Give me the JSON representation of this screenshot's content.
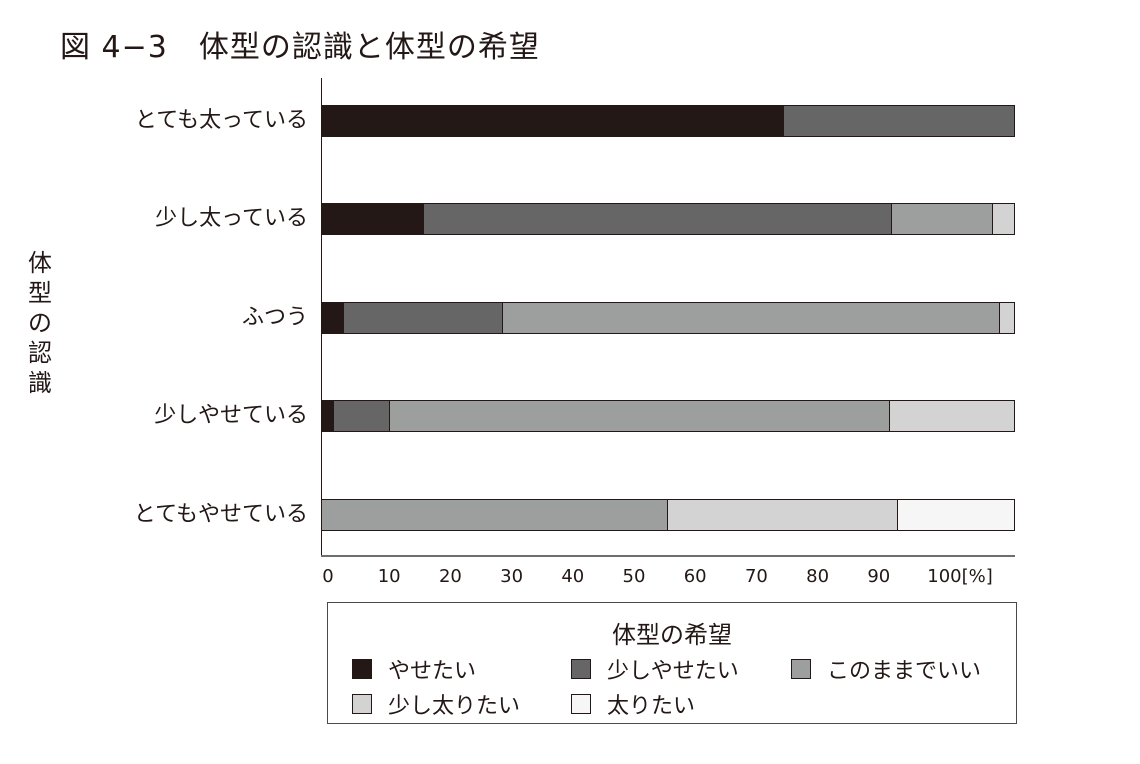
{
  "title": "図 4−3　体型の認識と体型の希望",
  "y_axis_label": [
    "体",
    "型",
    "の",
    "認",
    "識"
  ],
  "x_ticks": [
    "0",
    "10",
    "20",
    "30",
    "40",
    "50",
    "60",
    "70",
    "80",
    "90",
    "100[%]"
  ],
  "legend": {
    "title": "体型の希望",
    "items": [
      {
        "label": "やせたい",
        "color": "#231815"
      },
      {
        "label": "少しやせたい",
        "color": "#666666"
      },
      {
        "label": "このままでいい",
        "color": "#9d9f9e"
      },
      {
        "label": "少し太りたい",
        "color": "#d3d3d3"
      },
      {
        "label": "太りたい",
        "color": "#f5f6f5"
      }
    ]
  },
  "chart_data": {
    "type": "bar",
    "orientation": "horizontal",
    "stacked": true,
    "title": "図 4−3　体型の認識と体型の希望",
    "xlabel": "[%]",
    "ylabel": "体型の認識",
    "xlim": [
      0,
      100
    ],
    "x_ticks": [
      0,
      10,
      20,
      30,
      40,
      50,
      60,
      70,
      80,
      90,
      100
    ],
    "grid": false,
    "legend_title": "体型の希望",
    "legend_position": "bottom",
    "categories": [
      "とても太っている",
      "少し太っている",
      "ふつう",
      "少しやせている",
      "とてもやせている"
    ],
    "series": [
      {
        "name": "やせたい",
        "color": "#231815",
        "values": [
          66.7,
          14.7,
          3.2,
          1.7,
          0
        ]
      },
      {
        "name": "少しやせたい",
        "color": "#666666",
        "values": [
          33.3,
          67.6,
          22.9,
          8.1,
          0
        ]
      },
      {
        "name": "このままでいい",
        "color": "#9d9f9e",
        "values": [
          0,
          14.7,
          71.9,
          72.3,
          50.0
        ]
      },
      {
        "name": "少し太りたい",
        "color": "#d3d3d3",
        "values": [
          0,
          3.0,
          2.0,
          17.9,
          33.3
        ]
      },
      {
        "name": "太りたい",
        "color": "#f5f6f5",
        "values": [
          0,
          0,
          0,
          0,
          16.7
        ]
      }
    ]
  }
}
